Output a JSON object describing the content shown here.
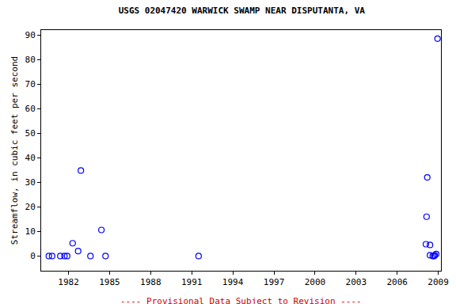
{
  "chart_data": {
    "type": "scatter",
    "title": "USGS 02047420 WARWICK SWAMP NEAR DISPUTANTA, VA",
    "y_label": "Streamflow, in cubic feet per second",
    "annotations": [
      "---- Provisional Data Subject to Revision ----"
    ],
    "x": [
      1980.56,
      1980.8,
      1981.4,
      1981.7,
      1981.9,
      1982.3,
      1982.7,
      1982.9,
      1983.6,
      1984.4,
      1984.7,
      1991.5,
      2008.1,
      2008.15,
      2008.2,
      2008.4,
      2008.4,
      2008.6,
      2008.7,
      2008.75,
      2008.85,
      2008.95
    ],
    "values": [
      0,
      0,
      0,
      0,
      0,
      5.2,
      2,
      34.8,
      0,
      10.6,
      0,
      0,
      4.8,
      16,
      32,
      4.5,
      0.3,
      0,
      0,
      0.3,
      0.8,
      88.5
    ],
    "color": "#0000ff",
    "marker": "open-circle",
    "xlim": [
      1980,
      2009.2
    ],
    "xticks": [
      1982,
      1985,
      1988,
      1991,
      1994,
      1997,
      2000,
      2003,
      2006,
      2009
    ],
    "ylim": [
      -6,
      92
    ],
    "yticks": [
      0,
      10,
      20,
      30,
      40,
      50,
      60,
      70,
      80,
      90
    ],
    "grid": false
  }
}
